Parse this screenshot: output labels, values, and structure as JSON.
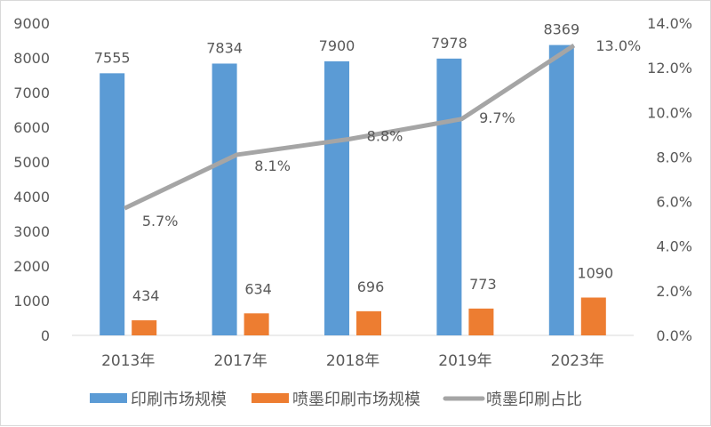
{
  "chart_data": {
    "type": "bar",
    "title": "",
    "categories": [
      "2013年",
      "2017年",
      "2018年",
      "2019年",
      "2023年"
    ],
    "series": [
      {
        "name": "印刷市场规模",
        "type": "bar",
        "axis": "left",
        "color": "#5B9BD5",
        "values": [
          7555,
          7834,
          7900,
          7978,
          8369
        ],
        "labels": [
          "7555",
          "7834",
          "7900",
          "7978",
          "8369"
        ]
      },
      {
        "name": "喷墨印刷市场规模",
        "type": "bar",
        "axis": "left",
        "color": "#ED7D31",
        "values": [
          434,
          634,
          696,
          773,
          1090
        ],
        "labels": [
          "434",
          "634",
          "696",
          "773",
          "1090"
        ]
      },
      {
        "name": "喷墨印刷占比",
        "type": "line",
        "axis": "right",
        "color": "#A5A5A5",
        "values": [
          5.7,
          8.1,
          8.8,
          9.7,
          13.0
        ],
        "labels": [
          "5.7%",
          "8.1%",
          "8.8%",
          "9.7%",
          "13.0%"
        ]
      }
    ],
    "ylim": [
      0,
      9000
    ],
    "yticks": [
      "0",
      "1000",
      "2000",
      "3000",
      "4000",
      "5000",
      "6000",
      "7000",
      "8000",
      "9000"
    ],
    "y2lim": [
      0,
      14
    ],
    "y2ticks": [
      "0.0%",
      "2.0%",
      "4.0%",
      "6.0%",
      "8.0%",
      "10.0%",
      "12.0%",
      "14.0%"
    ],
    "grid": false,
    "legend": "bottom"
  }
}
